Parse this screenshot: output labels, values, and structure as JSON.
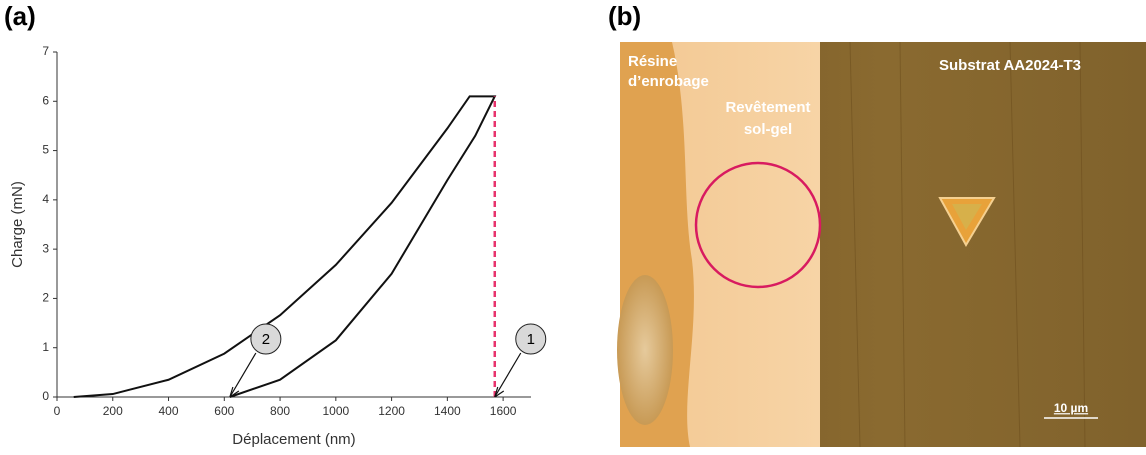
{
  "panel_a_label": "(a)",
  "panel_b_label": "(b)",
  "chart_data": {
    "type": "line",
    "x_label": "Déplacement (nm)",
    "y_label": "Charge (mN)",
    "xlim": [
      0,
      1700
    ],
    "ylim": [
      0,
      7
    ],
    "xticks": [
      0,
      200,
      400,
      600,
      800,
      1000,
      1200,
      1400,
      1600
    ],
    "yticks": [
      0,
      1,
      2,
      3,
      4,
      5,
      6,
      7
    ],
    "series": [
      {
        "color": "#111111",
        "x": [
          60,
          200,
          400,
          600,
          800,
          1000,
          1200,
          1400,
          1480,
          1570,
          1500,
          1400,
          1200,
          1000,
          800,
          620
        ],
        "values": [
          0,
          0.06,
          0.35,
          0.88,
          1.66,
          2.68,
          3.94,
          5.45,
          6.1,
          6.1,
          5.3,
          4.4,
          2.5,
          1.15,
          0.35,
          0
        ]
      }
    ],
    "vline": {
      "x": 1570,
      "ymax": 6.1,
      "color": "#e8336d"
    },
    "annotations": [
      {
        "text": "1",
        "x": 1570,
        "y": 0
      },
      {
        "text": "2",
        "x": 620,
        "y": 0
      }
    ]
  },
  "micrograph": {
    "resin_label": [
      "Résine",
      "d’enrobage"
    ],
    "coating_label": [
      "Revêtement",
      "sol-gel"
    ],
    "substrate_label": "Substrat AA2024-T3",
    "scale_bar": "10 µm"
  }
}
